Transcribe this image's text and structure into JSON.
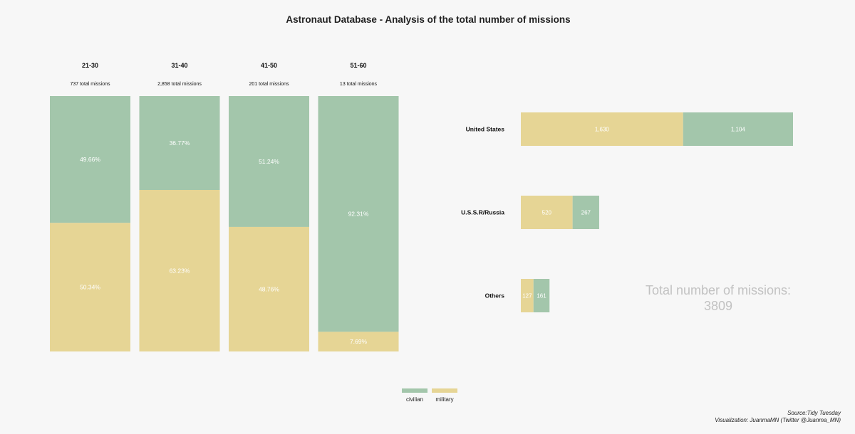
{
  "title": "Astronaut Database - Analysis of the total number of missions",
  "colors": {
    "civilian": "#a3c6ab",
    "military": "#e6d595",
    "background": "#f7f7f7",
    "total_text": "#c2c2c2"
  },
  "chart_data": [
    {
      "type": "bar",
      "stacked": true,
      "normalized_percent": true,
      "categories": [
        "21-30",
        "31-40",
        "41-50",
        "51-60"
      ],
      "subtitles": [
        "737 total missions",
        "2,858 total missions",
        "201 total missions",
        "13 total missions"
      ],
      "series": [
        {
          "name": "civilian",
          "values": [
            49.66,
            36.77,
            51.24,
            92.31
          ],
          "labels": [
            "49.66%",
            "36.77%",
            "51.24%",
            "92.31%"
          ]
        },
        {
          "name": "military",
          "values": [
            50.34,
            63.23,
            48.76,
            7.69
          ],
          "labels": [
            "50.34%",
            "63.23%",
            "48.76%",
            "7.69%"
          ]
        }
      ],
      "ylim": [
        0,
        100
      ],
      "grid": false
    },
    {
      "type": "bar",
      "orientation": "horizontal",
      "stacked": true,
      "categories": [
        "United States",
        "U.S.S.R/Russia",
        "Others"
      ],
      "series": [
        {
          "name": "military",
          "values": [
            1630,
            520,
            127
          ],
          "labels": [
            "1,630",
            "520",
            "127"
          ]
        },
        {
          "name": "civilian",
          "values": [
            1104,
            267,
            161
          ],
          "labels": [
            "1,104",
            "267",
            "161"
          ]
        }
      ],
      "grid": false
    }
  ],
  "total": {
    "line1": "Total number of missions:",
    "line2": "3809"
  },
  "legend": {
    "items": [
      "civilian",
      "military"
    ],
    "placement": "bottom-center"
  },
  "credits": {
    "source": "Source:Tidy Tuesday",
    "visualization": "Visualization: JuanmaMN (Twitter @Juanma_MN)"
  }
}
